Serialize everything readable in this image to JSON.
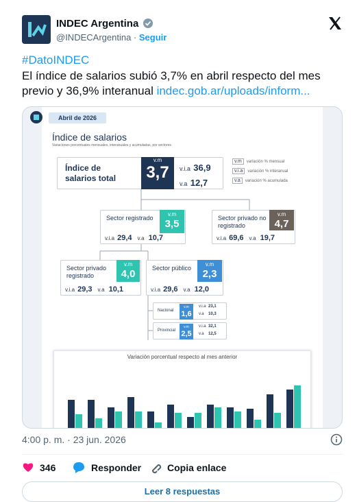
{
  "header": {
    "name": "INDEC Argentina",
    "handle": "@INDECArgentina",
    "follow": "Seguir"
  },
  "tweet": {
    "hashtag": "#DatoINDEC",
    "text": "El índice de salarios subió 3,7% en abril respecto del mes previo y 36,9% interanual ",
    "link": "indec.gob.ar/uploads/inform..."
  },
  "infographic": {
    "date": "Abril de 2026",
    "title": "Índice de salarios",
    "subtitle": "Variaciones porcentuales mensuales, interanuales y acumuladas, por sectores",
    "legend": [
      {
        "key": "v.m",
        "label": "variación % mensual"
      },
      {
        "key": "v.i.a",
        "label": "variación % interanual"
      },
      {
        "key": "v.a",
        "label": "variación % acumulada"
      }
    ],
    "labels": {
      "vm": "v.m",
      "via": "v.i.a",
      "va": "v.a"
    },
    "main": {
      "label": "Índice de salarios total",
      "vm": "3,7",
      "via": "36,9",
      "va": "12,7"
    },
    "nodes": [
      {
        "label": "Sector registrado",
        "vm": "3,5",
        "via": "29,4",
        "va": "10,7"
      },
      {
        "label": "Sector privado no registrado",
        "vm": "4,7",
        "via": "69,6",
        "va": "19,7"
      },
      {
        "label": "Sector privado registrado",
        "vm": "4,0",
        "via": "29,3",
        "va": "10,1"
      },
      {
        "label": "Sector público",
        "vm": "2,3",
        "via": "29,6",
        "va": "12,0"
      },
      {
        "label": "Nacional",
        "vm": "1,6",
        "via": "23,1",
        "va": "10,3"
      },
      {
        "label": "Provincial",
        "vm": "2,5",
        "via": "32,1",
        "va": "12,5"
      }
    ]
  },
  "chart_data": {
    "type": "bar",
    "title": "Variación porcentual respecto al mes anterior",
    "ylim": [
      0,
      70
    ],
    "series": [
      {
        "color": "#1f3556",
        "values": [
          44,
          44,
          33,
          48,
          27,
          37,
          19,
          37,
          33,
          31,
          52,
          59
        ]
      },
      {
        "color": "#2ec4b0",
        "values": [
          23,
          17,
          27,
          27,
          11,
          25,
          25,
          33,
          27,
          15,
          25,
          65
        ]
      }
    ]
  },
  "footer": {
    "time": "4:00 p. m. · 23 jun. 2026",
    "likes": "346",
    "reply": "Responder",
    "copy": "Copia enlace",
    "read": "Leer 8 respuestas"
  }
}
